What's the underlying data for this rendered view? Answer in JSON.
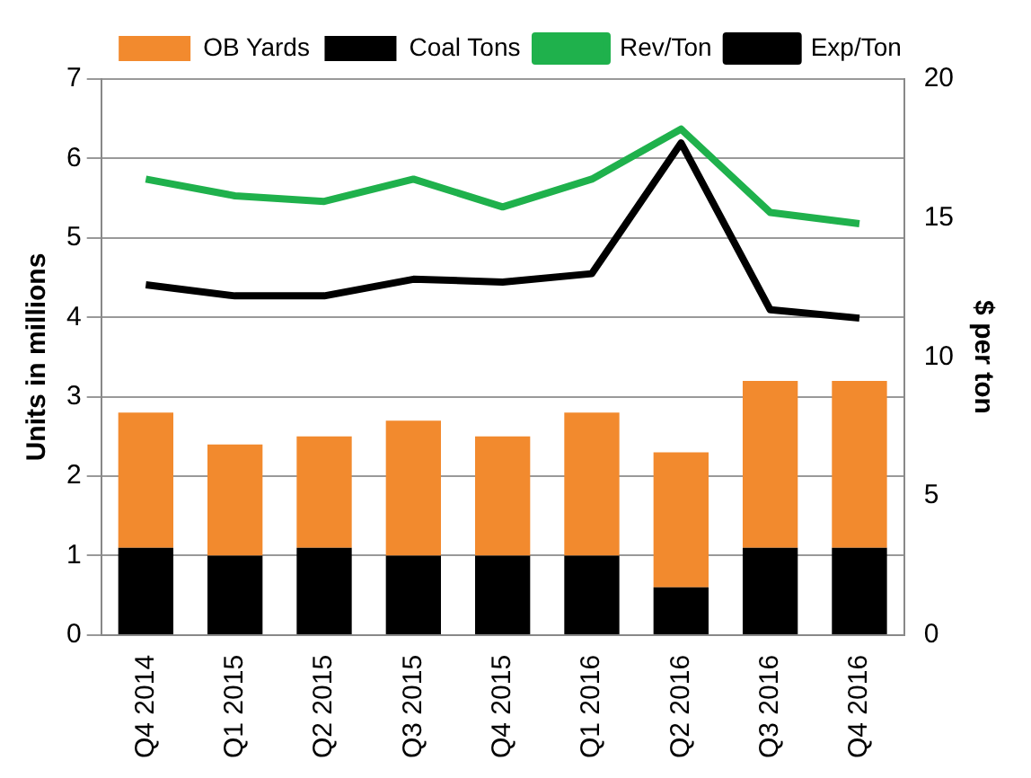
{
  "chart_data": {
    "type": "bar",
    "stacked": true,
    "categories": [
      "Q4 2014",
      "Q1 2015",
      "Q2 2015",
      "Q3 2015",
      "Q4 2015",
      "Q1 2016",
      "Q2 2016",
      "Q3 2016",
      "Q4 2016"
    ],
    "series": [
      {
        "name": "Coal Tons",
        "color": "#000000",
        "values": [
          1.1,
          1.0,
          1.1,
          1.0,
          1.0,
          1.0,
          0.6,
          1.1,
          1.1
        ]
      },
      {
        "name": "OB Yards",
        "color": "#f28a2e",
        "values": [
          1.7,
          1.4,
          1.4,
          1.7,
          1.5,
          1.8,
          1.7,
          2.1,
          2.1
        ]
      },
      {
        "name": "Rev/Ton",
        "type": "line",
        "axis": "y2",
        "color": "#1fb14c",
        "values": [
          16.4,
          15.8,
          15.6,
          16.4,
          15.4,
          16.4,
          18.2,
          15.2,
          14.8
        ]
      },
      {
        "name": "Exp/Ton",
        "type": "line",
        "axis": "y2",
        "color": "#000000",
        "values": [
          12.6,
          12.2,
          12.2,
          12.8,
          12.7,
          13.0,
          17.7,
          11.7,
          11.4
        ]
      }
    ],
    "ylabel": "Units in millions",
    "y2label": "$ per ton",
    "ylim": [
      0,
      7
    ],
    "yticks": [
      0,
      1,
      2,
      3,
      4,
      5,
      6,
      7
    ],
    "y2lim": [
      0,
      20
    ],
    "y2ticks": [
      0,
      5,
      10,
      15,
      20
    ],
    "grid": "y",
    "legend": "top",
    "marker": "none"
  }
}
